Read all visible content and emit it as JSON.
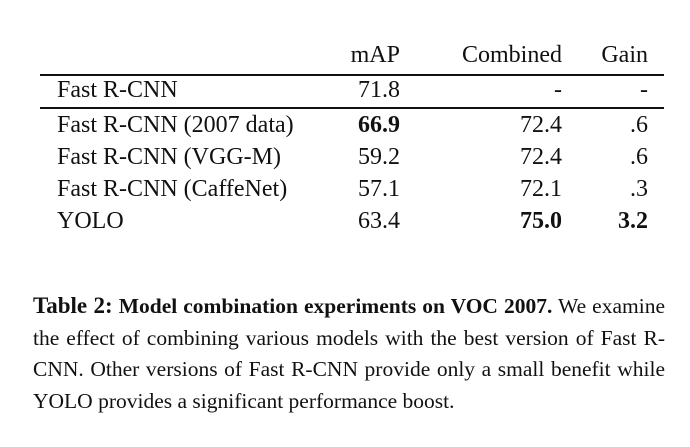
{
  "table": {
    "headers": [
      "",
      "mAP",
      "Combined",
      "Gain"
    ],
    "baseline": {
      "name": "Fast R-CNN",
      "map": "71.8",
      "combined": "-",
      "gain": "-"
    },
    "rows": [
      {
        "name": "Fast R-CNN (2007 data)",
        "map": "66.9",
        "combined": "72.4",
        "gain": ".6"
      },
      {
        "name": "Fast R-CNN (VGG-M)",
        "map": "59.2",
        "combined": "72.4",
        "gain": ".6"
      },
      {
        "name": "Fast R-CNN (CaffeNet)",
        "map": "57.1",
        "combined": "72.1",
        "gain": ".3"
      },
      {
        "name": "YOLO",
        "map": "63.4",
        "combined": "75.0",
        "gain": "3.2"
      }
    ]
  },
  "caption": {
    "label": "Table 2:",
    "title": "Model combination experiments on VOC 2007.",
    "body": "We examine the effect of combining various models with the best version of Fast R-CNN. Other versions of Fast R-CNN provide only a small benefit while YOLO provides a significant performance boost."
  }
}
